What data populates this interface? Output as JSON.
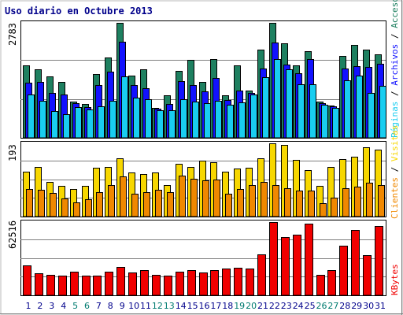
{
  "title": "Uso diario en Octubre 2013",
  "colors": {
    "accesos": "#1e8060",
    "archivos": "#1212ff",
    "paginas": "#19cdf0",
    "visitas": "#f7d700",
    "clientes": "#f08800",
    "kbytes": "#f00000",
    "weekend_label": "#007b70",
    "weekday_label": "#00008b",
    "separator": "#000000"
  },
  "chart_data": [
    {
      "type": "bar",
      "ytick_label": "2783",
      "ymax": 2783,
      "legend": [
        "Accesos",
        "Archivos",
        "Páginas"
      ],
      "categories": [
        "1",
        "2",
        "3",
        "4",
        "5",
        "6",
        "7",
        "8",
        "9",
        "10",
        "11",
        "12",
        "13",
        "14",
        "15",
        "16",
        "17",
        "18",
        "19",
        "20",
        "21",
        "22",
        "23",
        "24",
        "25",
        "26",
        "27",
        "28",
        "29",
        "30",
        "31"
      ],
      "weekend": [
        false,
        false,
        false,
        false,
        true,
        true,
        false,
        false,
        false,
        false,
        false,
        true,
        true,
        false,
        false,
        false,
        false,
        false,
        true,
        true,
        false,
        false,
        false,
        false,
        false,
        true,
        true,
        false,
        false,
        false,
        false
      ],
      "series": [
        {
          "name": "Accesos",
          "values": [
            1760,
            1650,
            1480,
            1360,
            880,
            820,
            1550,
            1950,
            2783,
            1500,
            1660,
            720,
            1030,
            1620,
            1880,
            1350,
            1900,
            1030,
            1760,
            1150,
            2140,
            2783,
            2290,
            1750,
            2090,
            880,
            780,
            1990,
            2240,
            2130,
            2020
          ]
        },
        {
          "name": "Archivos",
          "values": [
            1330,
            1350,
            1080,
            1040,
            840,
            740,
            1270,
            1600,
            2320,
            1270,
            1200,
            700,
            820,
            1370,
            1280,
            1120,
            1440,
            920,
            1140,
            1090,
            1680,
            2300,
            1770,
            1570,
            1900,
            830,
            770,
            1680,
            1740,
            1710,
            1800
          ]
        },
        {
          "name": "Páginas",
          "values": [
            1050,
            890,
            650,
            570,
            740,
            690,
            760,
            890,
            1480,
            980,
            930,
            660,
            660,
            930,
            870,
            840,
            900,
            800,
            860,
            1050,
            1470,
            1900,
            1650,
            1290,
            1300,
            810,
            730,
            1400,
            1500,
            1080,
            1250
          ]
        }
      ]
    },
    {
      "type": "bar",
      "ytick_label": "193",
      "ymax": 193,
      "legend": [
        "Visitas",
        "Clientes"
      ],
      "categories": [
        "1",
        "2",
        "3",
        "4",
        "5",
        "6",
        "7",
        "8",
        "9",
        "10",
        "11",
        "12",
        "13",
        "14",
        "15",
        "16",
        "17",
        "18",
        "19",
        "20",
        "21",
        "22",
        "23",
        "24",
        "25",
        "26",
        "27",
        "28",
        "29",
        "30",
        "31"
      ],
      "series": [
        {
          "name": "Visitas",
          "values": [
            118,
            130,
            92,
            80,
            72,
            81,
            128,
            130,
            153,
            117,
            113,
            117,
            84,
            140,
            130,
            148,
            143,
            119,
            127,
            128,
            153,
            193,
            188,
            150,
            123,
            80,
            130,
            151,
            157,
            183,
            176
          ]
        },
        {
          "name": "Clientes",
          "values": [
            72,
            71,
            62,
            48,
            38,
            46,
            65,
            83,
            105,
            61,
            64,
            71,
            64,
            108,
            100,
            96,
            97,
            61,
            72,
            83,
            91,
            82,
            75,
            69,
            69,
            35,
            49,
            74,
            78,
            90,
            82
          ]
        }
      ]
    },
    {
      "type": "bar",
      "ytick_label": "62516",
      "ymax": 62516,
      "legend": [
        "KBytes"
      ],
      "categories": [
        "1",
        "2",
        "3",
        "4",
        "5",
        "6",
        "7",
        "8",
        "9",
        "10",
        "11",
        "12",
        "13",
        "14",
        "15",
        "16",
        "17",
        "18",
        "19",
        "20",
        "21",
        "22",
        "23",
        "24",
        "25",
        "26",
        "27",
        "28",
        "29",
        "30",
        "31"
      ],
      "series": [
        {
          "name": "KBytes",
          "values": [
            25500,
            19000,
            17800,
            16500,
            20200,
            16900,
            17000,
            19900,
            24200,
            19600,
            21200,
            17800,
            16500,
            20000,
            21600,
            19500,
            21800,
            22700,
            23500,
            22700,
            35000,
            62516,
            50000,
            52000,
            61200,
            17800,
            21700,
            42100,
            55500,
            34000,
            59200
          ]
        }
      ]
    }
  ]
}
